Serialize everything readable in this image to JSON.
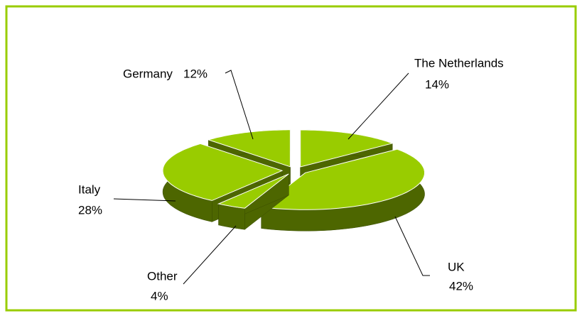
{
  "chart_data": {
    "type": "pie3d",
    "categories": [
      "The Netherlands",
      "UK",
      "Other",
      "Italy",
      "Germany"
    ],
    "values": [
      14,
      42,
      4,
      28,
      12
    ],
    "value_labels": [
      "14%",
      "42%",
      "4%",
      "28%",
      "12%"
    ],
    "color": "#99cc00",
    "side_color": "#4d6600"
  }
}
